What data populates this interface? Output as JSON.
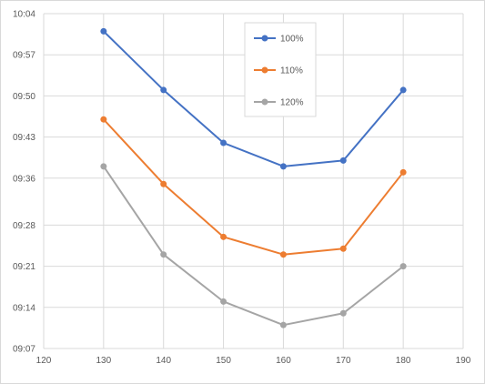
{
  "chart_data": {
    "type": "line",
    "title": "",
    "xlabel": "",
    "ylabel": "",
    "x": [
      130,
      140,
      150,
      160,
      170,
      180
    ],
    "xlim": [
      120,
      190
    ],
    "xticks": [
      "120",
      "130",
      "140",
      "150",
      "160",
      "170",
      "180",
      "190"
    ],
    "ylim": [
      "09:07",
      "10:04"
    ],
    "yticks": [
      "09:07",
      "09:14",
      "09:21",
      "09:28",
      "09:36",
      "09:43",
      "09:50",
      "09:57",
      "10:04"
    ],
    "grid": "horizontal and vertical",
    "legend_position": "top-center",
    "series": [
      {
        "name": "100%",
        "color": "#4472c4",
        "values": [
          "10:01",
          "09:51",
          "09:42",
          "09:38",
          "09:39",
          "09:51"
        ]
      },
      {
        "name": "110%",
        "color": "#ed7d31",
        "values": [
          "09:46",
          "09:35",
          "09:26",
          "09:23",
          "09:24",
          "09:37"
        ]
      },
      {
        "name": "120%",
        "color": "#a5a5a5",
        "values": [
          "09:38",
          "09:23",
          "09:15",
          "09:11",
          "09:13",
          "09:21"
        ]
      }
    ]
  }
}
